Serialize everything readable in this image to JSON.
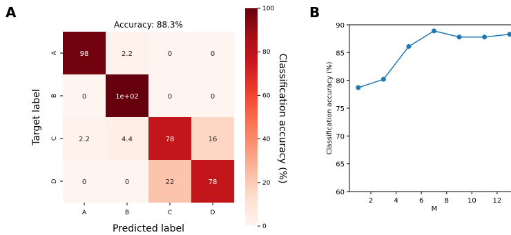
{
  "panels": {
    "a": "A",
    "b": "B"
  },
  "chart_data": [
    {
      "type": "heatmap",
      "title": "Accuracy: 88.3%",
      "xlabel": "Predicted label",
      "ylabel": "Target label",
      "x_categories": [
        "A",
        "B",
        "C",
        "D"
      ],
      "y_categories": [
        "A",
        "B",
        "C",
        "D"
      ],
      "values": [
        [
          98,
          2.2,
          0,
          0
        ],
        [
          0,
          100,
          0,
          0
        ],
        [
          2.2,
          4.4,
          78,
          16
        ],
        [
          0,
          0,
          22,
          78
        ]
      ],
      "cell_labels": [
        [
          "98",
          "2.2",
          "0",
          "0"
        ],
        [
          "0",
          "1e+02",
          "0",
          "0"
        ],
        [
          "2.2",
          "4.4",
          "78",
          "16"
        ],
        [
          "0",
          "0",
          "22",
          "78"
        ]
      ],
      "colorbar": {
        "label": "Classification accuracy (%)",
        "range": [
          0,
          100
        ],
        "ticks": [
          0,
          20,
          40,
          60,
          80,
          100
        ],
        "colormap": "Reds"
      }
    },
    {
      "type": "line",
      "xlabel": "M",
      "ylabel": "Classification accuracy (%)",
      "x": [
        1,
        3,
        5,
        7,
        9,
        11,
        13
      ],
      "y": [
        78.7,
        80.2,
        86.1,
        88.9,
        87.8,
        87.8,
        88.3
      ],
      "xlim": [
        0.3,
        13.1
      ],
      "ylim": [
        60,
        90
      ],
      "xticks": [
        2,
        4,
        6,
        8,
        10,
        12
      ],
      "yticks": [
        60,
        65,
        70,
        75,
        80,
        85,
        90
      ],
      "color": "#1f77b4",
      "marker": "circle"
    }
  ]
}
